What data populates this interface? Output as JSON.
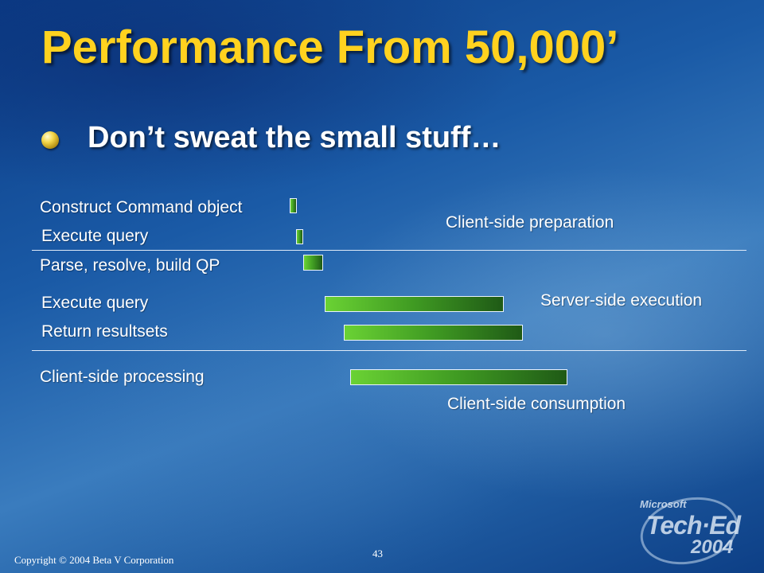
{
  "slide": {
    "title": "Performance From 50,000’",
    "bullet": "Don’t sweat the small stuff…",
    "steps": [
      {
        "label": "Construct Command object",
        "phase": "Client-side preparation"
      },
      {
        "label": "Execute query",
        "phase": "Client-side preparation"
      },
      {
        "label": "Parse, resolve, build QP",
        "phase": "Server-side execution"
      },
      {
        "label": "Execute query",
        "phase": "Server-side execution"
      },
      {
        "label": "Return resultsets",
        "phase": "Server-side execution"
      },
      {
        "label": "Client-side processing",
        "phase": "Client-side consumption"
      }
    ],
    "phases": {
      "client_prep": "Client-side preparation",
      "server_exec": "Server-side execution",
      "client_consume": "Client-side consumption"
    },
    "footer": {
      "copyright": "Copyright © 2004 Beta V Corporation",
      "page_number": "43"
    },
    "logo": {
      "line1": "Microsoft",
      "line2": "Tech·Ed",
      "line3": "2004"
    },
    "colors": {
      "title": "#ffd21f",
      "bar_light": "#6ad234",
      "bar_dark": "#1f5a16",
      "background": "#1a5aa6"
    }
  }
}
